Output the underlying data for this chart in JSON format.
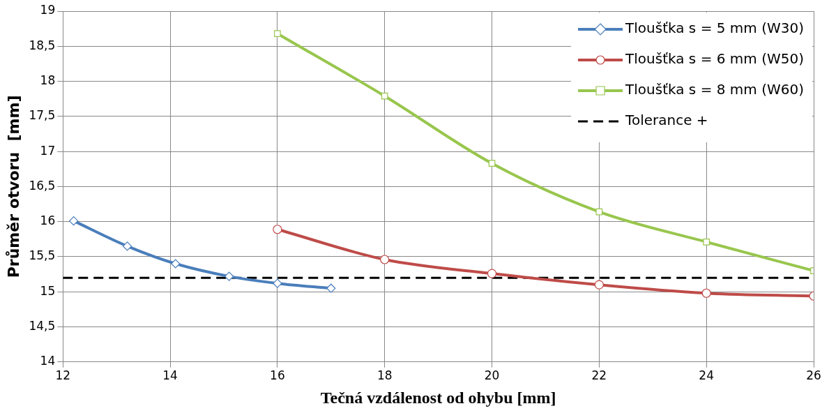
{
  "chart_data": {
    "type": "line",
    "xlabel": "Tečná vzdálenost od ohybu [mm]",
    "ylabel": "Průměr otvoru  [mm]",
    "xlim": [
      12,
      26
    ],
    "xticks": [
      12,
      14,
      16,
      18,
      20,
      22,
      24,
      26
    ],
    "ylim": [
      14,
      19
    ],
    "yticks": [
      14,
      {
        "value": 14.5,
        "label": "14,5"
      },
      15,
      {
        "value": 15.5,
        "label": "15,5"
      },
      16,
      {
        "value": 16.5,
        "label": "16,5"
      },
      17,
      {
        "value": 17.5,
        "label": "17,5"
      },
      18,
      {
        "value": 18.5,
        "label": "18,5"
      },
      19
    ],
    "grid": true,
    "legend": "top right",
    "series": [
      {
        "name": "Tloušťka s = 5 mm (W30)",
        "color": "#4a7ebb",
        "marker": "diamond",
        "x": [
          12.2,
          13.2,
          14.1,
          15.1,
          16,
          17
        ],
        "values": [
          16.01,
          15.65,
          15.4,
          15.22,
          15.12,
          15.05
        ]
      },
      {
        "name": "Tloušťka s = 6 mm (W50)",
        "color": "#be4b48",
        "marker": "circle",
        "x": [
          16,
          18,
          20,
          22,
          24,
          26
        ],
        "values": [
          15.89,
          15.46,
          15.26,
          15.1,
          14.98,
          14.94
        ]
      },
      {
        "name": "Tloušťka s = 8 mm (W60)",
        "color": "#98c64d",
        "marker": "square",
        "x": [
          16,
          18,
          20,
          22,
          24,
          26
        ],
        "values": [
          18.68,
          17.79,
          16.83,
          16.14,
          15.71,
          15.3
        ]
      }
    ],
    "ref_lines": [
      {
        "axis": "y",
        "value": 15.2,
        "label": "Tolerance +",
        "color": "#000000",
        "line_style": "dashed"
      }
    ]
  }
}
